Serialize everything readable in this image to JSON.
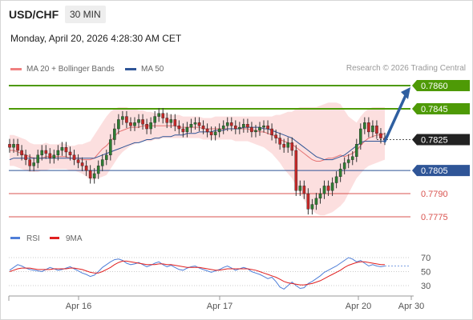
{
  "header": {
    "symbol": "USD/CHF",
    "timeframe": "30 MIN"
  },
  "datetime": "Monday, April 20, 2026 4:28:30 AM CET",
  "legend": {
    "bollinger": {
      "label": "MA 20 + Bollinger Bands",
      "color": "#f08080"
    },
    "ma50": {
      "label": "MA 50",
      "color": "#2f5597"
    }
  },
  "copyright": "Research © 2026 Trading Central",
  "chart_data": {
    "type": "candlestick",
    "price_levels": [
      {
        "value": 0.786,
        "label": "0.7860",
        "kind": "resistance",
        "color": "#4e9a06"
      },
      {
        "value": 0.7845,
        "label": "0.7845",
        "kind": "resistance",
        "color": "#4e9a06"
      },
      {
        "value": 0.7825,
        "label": "0.7825",
        "kind": "current",
        "color": "#222222"
      },
      {
        "value": 0.7805,
        "label": "0.7805",
        "kind": "pivot",
        "color": "#2f5597"
      },
      {
        "value": 0.779,
        "label": "0.7790",
        "kind": "support",
        "color": "#d9534f"
      },
      {
        "value": 0.7775,
        "label": "0.7775",
        "kind": "support",
        "color": "#d9534f"
      }
    ],
    "ylim": [
      0.777,
      0.7866
    ],
    "x_ticks": [
      "Apr 16",
      "Apr 17",
      "Apr 20",
      "Apr 30"
    ],
    "candles_close": [
      0.782,
      0.7822,
      0.7818,
      0.7815,
      0.7812,
      0.7808,
      0.781,
      0.7815,
      0.7818,
      0.7816,
      0.7813,
      0.7815,
      0.7818,
      0.782,
      0.7817,
      0.7815,
      0.7812,
      0.781,
      0.7808,
      0.7805,
      0.78,
      0.7803,
      0.7808,
      0.7812,
      0.7815,
      0.7825,
      0.7832,
      0.7838,
      0.784,
      0.7836,
      0.7834,
      0.7836,
      0.7838,
      0.7835,
      0.7832,
      0.7836,
      0.784,
      0.7842,
      0.7839,
      0.7836,
      0.7838,
      0.7834,
      0.7832,
      0.783,
      0.7833,
      0.7835,
      0.7836,
      0.7834,
      0.7832,
      0.783,
      0.7828,
      0.783,
      0.7832,
      0.7834,
      0.7836,
      0.7834,
      0.7832,
      0.7833,
      0.7835,
      0.7833,
      0.783,
      0.7831,
      0.7833,
      0.7834,
      0.7832,
      0.7828,
      0.7826,
      0.7822,
      0.782,
      0.7823,
      0.7818,
      0.7792,
      0.7795,
      0.779,
      0.778,
      0.7783,
      0.7787,
      0.779,
      0.7795,
      0.7792,
      0.7797,
      0.7801,
      0.7806,
      0.781,
      0.7812,
      0.7814,
      0.7822,
      0.7832,
      0.7836,
      0.783,
      0.7834,
      0.7829,
      0.7826,
      0.7825
    ],
    "ma20_upper": [
      0.7828,
      0.7828,
      0.7827,
      0.7826,
      0.7825,
      0.7823,
      0.7822,
      0.7822,
      0.7822,
      0.7823,
      0.7822,
      0.7822,
      0.7822,
      0.7823,
      0.7822,
      0.7821,
      0.7821,
      0.7822,
      0.7822,
      0.7823,
      0.7824,
      0.7828,
      0.7832,
      0.7836,
      0.784,
      0.7843,
      0.7845,
      0.7846,
      0.7846,
      0.7846,
      0.7845,
      0.7845,
      0.7844,
      0.7844,
      0.7843,
      0.7843,
      0.7842,
      0.7842,
      0.7842,
      0.7842,
      0.7841,
      0.7841,
      0.7841,
      0.784,
      0.784,
      0.784,
      0.784,
      0.784,
      0.7839,
      0.7839,
      0.7839,
      0.784,
      0.784,
      0.784,
      0.784,
      0.784,
      0.784,
      0.784,
      0.784,
      0.784,
      0.784,
      0.784,
      0.784,
      0.784,
      0.784,
      0.784,
      0.7841,
      0.7841,
      0.7842,
      0.7843,
      0.7843,
      0.7845,
      0.7846,
      0.7846,
      0.7846,
      0.7846,
      0.7846,
      0.7847,
      0.7848,
      0.7849,
      0.7849,
      0.7849,
      0.7848,
      0.7844,
      0.784,
      0.7838,
      0.7836,
      0.784,
      0.7843,
      0.7845,
      0.7846,
      0.7846,
      0.7846,
      0.7846
    ],
    "ma20_lower": [
      0.7808,
      0.7808,
      0.7807,
      0.7806,
      0.7805,
      0.7804,
      0.7804,
      0.7804,
      0.7805,
      0.7805,
      0.7806,
      0.7806,
      0.7806,
      0.7806,
      0.7806,
      0.7805,
      0.7805,
      0.7804,
      0.7803,
      0.7801,
      0.7799,
      0.7799,
      0.78,
      0.7801,
      0.7802,
      0.7806,
      0.781,
      0.7814,
      0.7817,
      0.7819,
      0.7821,
      0.7822,
      0.7823,
      0.7824,
      0.7824,
      0.7824,
      0.7825,
      0.7825,
      0.7826,
      0.7826,
      0.7826,
      0.7826,
      0.7826,
      0.7826,
      0.7826,
      0.7826,
      0.7826,
      0.7826,
      0.7825,
      0.7825,
      0.7825,
      0.7825,
      0.7825,
      0.7825,
      0.7825,
      0.7825,
      0.7824,
      0.7824,
      0.7824,
      0.7824,
      0.7823,
      0.7822,
      0.7821,
      0.782,
      0.7818,
      0.7816,
      0.7813,
      0.781,
      0.7806,
      0.7803,
      0.78,
      0.7795,
      0.779,
      0.7786,
      0.7782,
      0.7779,
      0.7777,
      0.7776,
      0.7776,
      0.7777,
      0.7778,
      0.778,
      0.7782,
      0.7785,
      0.779,
      0.7795,
      0.78,
      0.7803,
      0.7806,
      0.7808,
      0.7809,
      0.781,
      0.7811,
      0.7812
    ],
    "ma20_mid": [
      0.7818,
      0.7818,
      0.7817,
      0.7816,
      0.7815,
      0.7814,
      0.7813,
      0.7813,
      0.7813,
      0.7814,
      0.7814,
      0.7814,
      0.7814,
      0.7814,
      0.7814,
      0.7813,
      0.7813,
      0.7813,
      0.7812,
      0.7812,
      0.7812,
      0.7813,
      0.7816,
      0.7819,
      0.7821,
      0.7824,
      0.7827,
      0.783,
      0.7831,
      0.7832,
      0.7833,
      0.7833,
      0.7833,
      0.7834,
      0.7834,
      0.7834,
      0.7834,
      0.7834,
      0.7834,
      0.7834,
      0.7834,
      0.7834,
      0.7833,
      0.7833,
      0.7833,
      0.7833,
      0.7833,
      0.7833,
      0.7832,
      0.7832,
      0.7832,
      0.7832,
      0.7832,
      0.7832,
      0.7832,
      0.7832,
      0.7832,
      0.7832,
      0.7832,
      0.7832,
      0.7831,
      0.7831,
      0.783,
      0.783,
      0.7829,
      0.7828,
      0.7827,
      0.7825,
      0.7824,
      0.7823,
      0.7822,
      0.782,
      0.7818,
      0.7816,
      0.7814,
      0.7812,
      0.7811,
      0.7811,
      0.7812,
      0.7813,
      0.7813,
      0.7814,
      0.7815,
      0.7814,
      0.7815,
      0.7816,
      0.7818,
      0.7821,
      0.7824,
      0.7826,
      0.7827,
      0.7828,
      0.7828,
      0.7829
    ],
    "ma50": [
      0.7812,
      0.7813,
      0.7813,
      0.7813,
      0.7813,
      0.7813,
      0.7813,
      0.7813,
      0.7813,
      0.7813,
      0.7813,
      0.7813,
      0.7813,
      0.7813,
      0.7813,
      0.7813,
      0.7813,
      0.7813,
      0.7813,
      0.7813,
      0.7813,
      0.7813,
      0.7814,
      0.7815,
      0.7816,
      0.7817,
      0.7818,
      0.7819,
      0.782,
      0.7821,
      0.7822,
      0.7823,
      0.7823,
      0.7824,
      0.7825,
      0.7825,
      0.7826,
      0.7826,
      0.7827,
      0.7827,
      0.7827,
      0.7828,
      0.7828,
      0.7828,
      0.7829,
      0.7829,
      0.7829,
      0.783,
      0.783,
      0.783,
      0.783,
      0.7831,
      0.7831,
      0.7831,
      0.7832,
      0.7832,
      0.7832,
      0.7832,
      0.7833,
      0.7833,
      0.7833,
      0.7833,
      0.7833,
      0.7832,
      0.7832,
      0.7831,
      0.783,
      0.7829,
      0.7828,
      0.7827,
      0.7826,
      0.7824,
      0.7822,
      0.782,
      0.7818,
      0.7816,
      0.7814,
      0.7813,
      0.7812,
      0.7812,
      0.7812,
      0.7813,
      0.7814,
      0.7815,
      0.7817,
      0.7819,
      0.7821,
      0.7823,
      0.7824,
      0.7824,
      0.7824,
      0.7824,
      0.7824,
      0.7824
    ],
    "arrow": {
      "from": 0.7825,
      "to": 0.786,
      "direction": "up"
    },
    "rsi": {
      "legend": [
        {
          "label": "RSI",
          "color": "#4f7fd8"
        },
        {
          "label": "9MA",
          "color": "#e02020"
        }
      ],
      "ticks": [
        "70",
        "50",
        "30"
      ],
      "ylim": [
        20,
        80
      ],
      "rsi_values": [
        52,
        56,
        60,
        58,
        55,
        53,
        52,
        51,
        50,
        53,
        56,
        54,
        52,
        53,
        55,
        57,
        54,
        51,
        48,
        46,
        43,
        45,
        50,
        56,
        60,
        64,
        67,
        68,
        66,
        62,
        60,
        61,
        63,
        60,
        57,
        59,
        62,
        64,
        60,
        57,
        59,
        56,
        53,
        52,
        55,
        57,
        58,
        55,
        53,
        51,
        49,
        51,
        53,
        56,
        58,
        55,
        52,
        54,
        56,
        54,
        50,
        48,
        46,
        43,
        40,
        42,
        36,
        28,
        25,
        30,
        35,
        30,
        26,
        27,
        33,
        36,
        40,
        44,
        49,
        52,
        55,
        58,
        62,
        66,
        70,
        68,
        64,
        66,
        62,
        58,
        60,
        58,
        57,
        58
      ],
      "ma9_values": [
        50,
        52,
        54,
        55,
        55,
        55,
        54,
        53,
        53,
        53,
        53,
        54,
        54,
        54,
        54,
        55,
        55,
        54,
        53,
        51,
        49,
        48,
        48,
        50,
        53,
        56,
        60,
        63,
        65,
        65,
        64,
        63,
        62,
        61,
        60,
        60,
        60,
        61,
        61,
        60,
        60,
        59,
        58,
        57,
        56,
        56,
        56,
        56,
        55,
        54,
        53,
        52,
        52,
        53,
        54,
        54,
        54,
        54,
        54,
        54,
        53,
        52,
        50,
        48,
        46,
        44,
        42,
        39,
        36,
        34,
        33,
        32,
        31,
        31,
        32,
        33,
        35,
        37,
        40,
        43,
        46,
        49,
        52,
        56,
        59,
        61,
        63,
        64,
        64,
        63,
        62,
        61,
        60,
        60
      ]
    }
  }
}
